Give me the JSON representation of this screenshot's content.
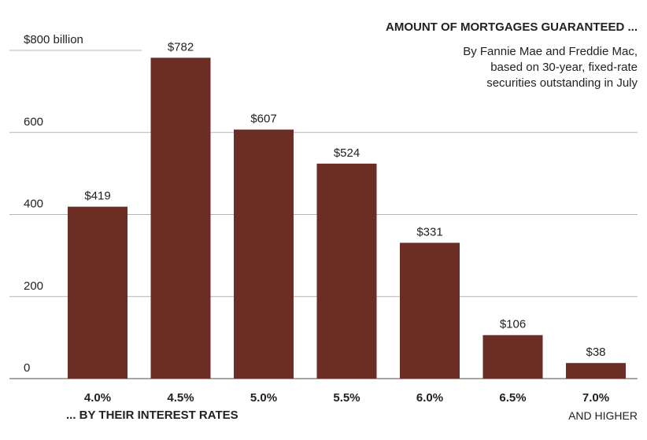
{
  "chart_data": {
    "type": "bar",
    "title": "AMOUNT OF MORTGAGES GUARANTEED ...",
    "subtitle": [
      "By Fannie Mae and Freddie Mac,",
      "based on 30-year, fixed-rate",
      "securities outstanding in July"
    ],
    "xlabel": "... BY THEIR INTEREST RATES",
    "ylabel": "",
    "categories": [
      "4.0%",
      "4.5%",
      "5.0%",
      "5.5%",
      "6.0%",
      "6.5%",
      "7.0%"
    ],
    "category_note": "AND HIGHER",
    "values": [
      419,
      782,
      607,
      524,
      331,
      106,
      38
    ],
    "value_labels": [
      "$419",
      "$782",
      "$607",
      "$524",
      "$331",
      "$106",
      "$38"
    ],
    "yticks": [
      0,
      200,
      400,
      600,
      800
    ],
    "ytick_labels": [
      "0",
      "200",
      "400",
      "600",
      "$800 billion"
    ],
    "ylim": [
      0,
      800
    ],
    "grid": true,
    "colors": {
      "bar": "#6b2d24",
      "grid": "#b5b5b5",
      "axis": "#888888"
    }
  }
}
